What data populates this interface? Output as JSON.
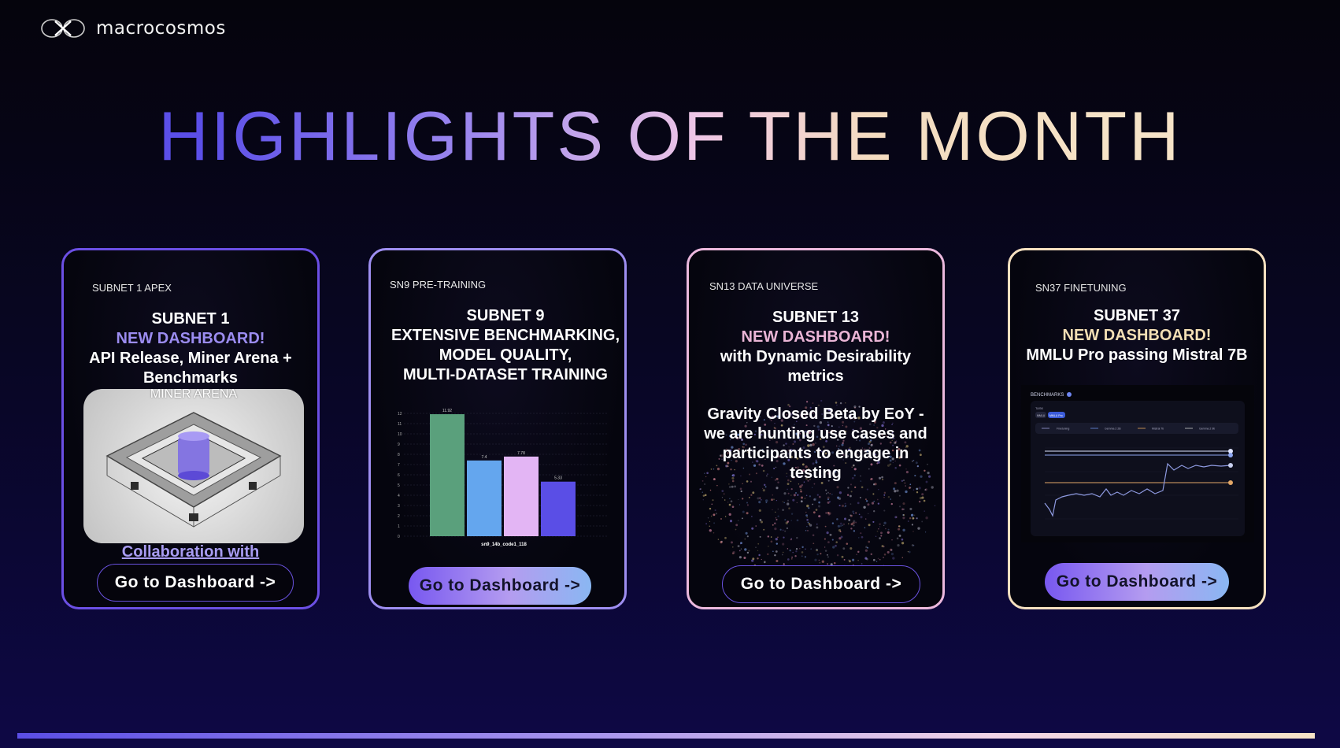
{
  "brand": {
    "name": "macrocosmos"
  },
  "headline": "HIGHLIGHTS OF THE MONTH",
  "cards": [
    {
      "tag": "SUBNET 1 APEX",
      "title": "SUBNET 1",
      "highlight": "NEW DASHBOARD!",
      "lines": [
        "API Release, Miner Arena +",
        "Benchmarks"
      ],
      "image_label": "MINER ARENA",
      "link_text": "Collaboration with",
      "button": "Go to Dashboard ->"
    },
    {
      "tag": "SN9 PRE-TRAINING",
      "title": "SUBNET 9",
      "lines": [
        "EXTENSIVE BENCHMARKING,",
        "MODEL QUALITY,",
        "MULTI-DATASET TRAINING"
      ],
      "button": "Go to Dashboard ->"
    },
    {
      "tag": "SN13 DATA UNIVERSE",
      "title": "SUBNET 13",
      "highlight": "NEW DASHBOARD!",
      "lines": [
        "with Dynamic Desirability",
        "metrics"
      ],
      "body": [
        "Gravity Closed Beta by EoY -",
        "we are hunting use cases and",
        "participants to engage in",
        "testing"
      ],
      "button": "Go to Dashboard ->"
    },
    {
      "tag": "SN37 FINETUNING",
      "title": "SUBNET 37",
      "highlight": "NEW DASHBOARD!",
      "lines": [
        "MMLU Pro passing Mistral 7B"
      ],
      "button": "Go to Dashboard ->"
    }
  ],
  "chart_data": {
    "type": "bar",
    "categories": [
      "sn9_14b_code1_118"
    ],
    "series": [
      {
        "values": [
          11.92
        ],
        "color": "#5aa07c"
      },
      {
        "values": [
          7.4
        ],
        "color": "#64a6ee"
      },
      {
        "values": [
          7.78
        ],
        "color": "#e3b5f4"
      },
      {
        "values": [
          5.33
        ],
        "color": "#5a4ee6"
      }
    ],
    "xlabel": "sn9_14b_code1_118",
    "ylim": [
      0,
      12
    ],
    "yticks": [
      "0",
      "1",
      "2",
      "3",
      "4",
      "5",
      "6",
      "7",
      "8",
      "9",
      "10",
      "11",
      "12"
    ],
    "data_labels": [
      "11.92",
      "7.4",
      "7.78",
      "5.33"
    ]
  },
  "bench_shot": {
    "header": "BENCHMARKS",
    "tab_label": "TASK",
    "tabs": [
      "MMLU",
      "MMLU Pro"
    ],
    "legend": [
      "Finetuning",
      "Gemma 2 2B",
      "Mistral 7b",
      "Gemma 2 9b"
    ]
  },
  "colors": {
    "accent": "#6b4fe4",
    "lavender": "#9e8ef0",
    "pink": "#ebb8dd",
    "cream": "#f5e0c0"
  }
}
